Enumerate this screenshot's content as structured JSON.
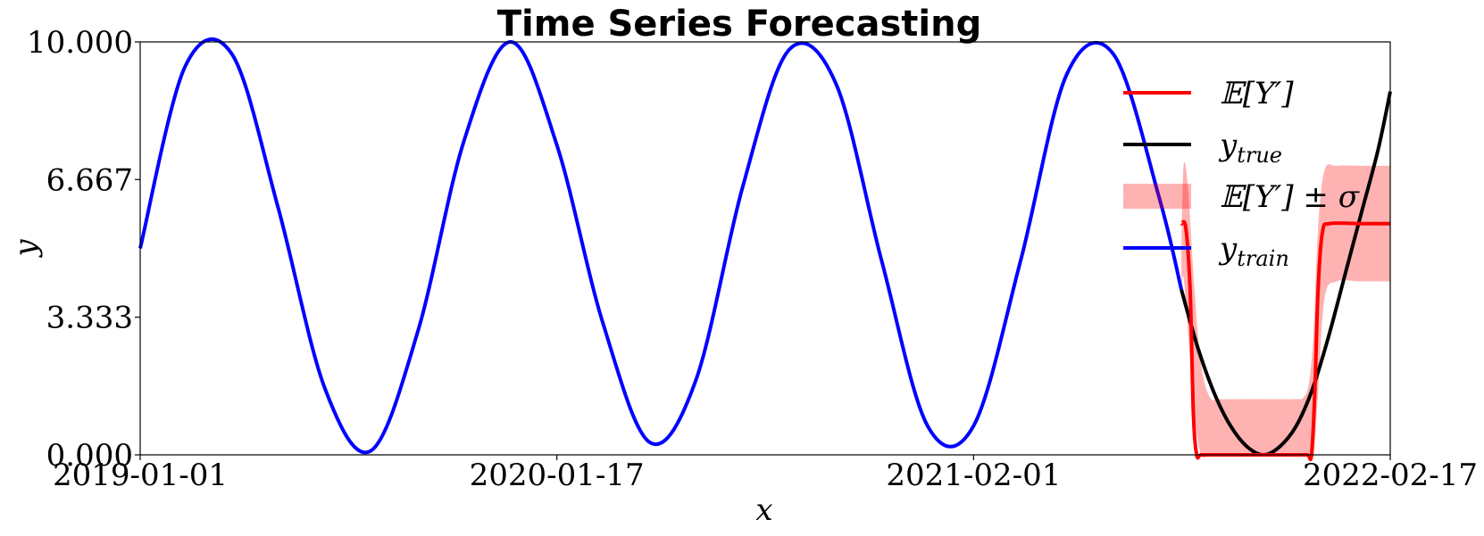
{
  "chart_data": {
    "type": "line",
    "title": "Time Series Forecasting",
    "xlabel": "x",
    "ylabel": "y",
    "x_start": "2019-01-01",
    "x_end": "2022-02-17",
    "xticks": [
      "2019-01-01",
      "2020-01-17",
      "2021-02-01",
      "2022-02-17"
    ],
    "yticks": [
      "0.000",
      "3.333",
      "6.667",
      "10.000"
    ],
    "ylim": [
      0,
      10
    ],
    "grid": false,
    "legend_position": "top-right",
    "colors": {
      "train": "#0000ff",
      "true": "#000000",
      "mean": "#ff0000",
      "band": "#ff0000"
    },
    "series": [
      {
        "name": "y_train",
        "legend": "y_train",
        "x": [
          "2019-01-01",
          "2019-02-11",
          "2019-03-26",
          "2019-05-07",
          "2019-06-19",
          "2019-07-31",
          "2019-09-12",
          "2019-10-24",
          "2019-12-06",
          "2020-01-17",
          "2020-02-28",
          "2020-04-11",
          "2020-05-23",
          "2020-07-05",
          "2020-08-16",
          "2020-09-28",
          "2020-11-09",
          "2020-12-21",
          "2021-02-01",
          "2021-03-16",
          "2021-04-27",
          "2021-06-09",
          "2021-07-21",
          "2021-08-10"
        ],
        "y": [
          5.0,
          9.4,
          9.7,
          6.0,
          1.6,
          0.1,
          3.0,
          7.6,
          10.0,
          7.5,
          3.2,
          0.3,
          1.8,
          6.5,
          9.8,
          9.0,
          4.7,
          0.7,
          0.7,
          4.7,
          9.2,
          9.7,
          6.2,
          4.0
        ]
      },
      {
        "name": "y_true",
        "legend": "y_true",
        "x": [
          "2021-08-10",
          "2021-08-25",
          "2021-09-09",
          "2021-09-24",
          "2021-10-09",
          "2021-10-24",
          "2021-11-08",
          "2021-11-23",
          "2021-12-08",
          "2021-12-23",
          "2022-01-07",
          "2022-01-22",
          "2022-02-06",
          "2022-02-17"
        ],
        "y": [
          4.0,
          2.6,
          1.5,
          0.7,
          0.2,
          0.0,
          0.2,
          0.7,
          1.6,
          2.9,
          4.4,
          5.9,
          7.4,
          8.8
        ]
      },
      {
        "name": "E[Y']",
        "legend": "E[Y']",
        "x": [
          "2021-08-10",
          "2021-08-14",
          "2021-08-18",
          "2021-08-21",
          "2021-08-24",
          "2021-08-28",
          "2021-09-10",
          "2021-10-15",
          "2021-11-20",
          "2021-12-03",
          "2021-12-07",
          "2021-12-10",
          "2021-12-13",
          "2021-12-17",
          "2021-12-24",
          "2022-01-20",
          "2022-02-17"
        ],
        "y": [
          5.6,
          5.5,
          4.0,
          1.0,
          0.0,
          0.0,
          0.0,
          0.0,
          0.0,
          0.0,
          0.0,
          1.5,
          4.0,
          5.4,
          5.6,
          5.6,
          5.6
        ]
      }
    ],
    "band": {
      "name": "E[Y'] ± σ",
      "legend": "E[Y'] ± σ",
      "x": [
        "2021-08-10",
        "2021-08-12",
        "2021-08-16",
        "2021-08-22",
        "2021-08-28",
        "2021-09-05",
        "2021-09-15",
        "2021-10-15",
        "2021-11-20",
        "2021-11-30",
        "2021-12-05",
        "2021-12-09",
        "2021-12-13",
        "2021-12-19",
        "2021-12-30",
        "2022-01-20",
        "2022-02-17"
      ],
      "upper": [
        5.0,
        7.0,
        6.5,
        4.0,
        2.2,
        1.4,
        1.35,
        1.35,
        1.35,
        1.4,
        1.8,
        3.0,
        5.5,
        6.9,
        7.0,
        7.0,
        7.0
      ],
      "lower": [
        4.0,
        4.3,
        3.0,
        1.0,
        0.0,
        0.0,
        0.0,
        0.0,
        0.0,
        0.0,
        0.0,
        0.0,
        1.5,
        3.8,
        4.2,
        4.2,
        4.2
      ]
    },
    "legend_entries": [
      {
        "series": "mean",
        "label_main": "𝔼[Y′]",
        "label_sub": ""
      },
      {
        "series": "true",
        "label_main": "y",
        "label_sub": "true"
      },
      {
        "series": "band",
        "label_main": "𝔼[Y′] ± σ",
        "label_sub": ""
      },
      {
        "series": "train",
        "label_main": "y",
        "label_sub": "train"
      }
    ]
  }
}
